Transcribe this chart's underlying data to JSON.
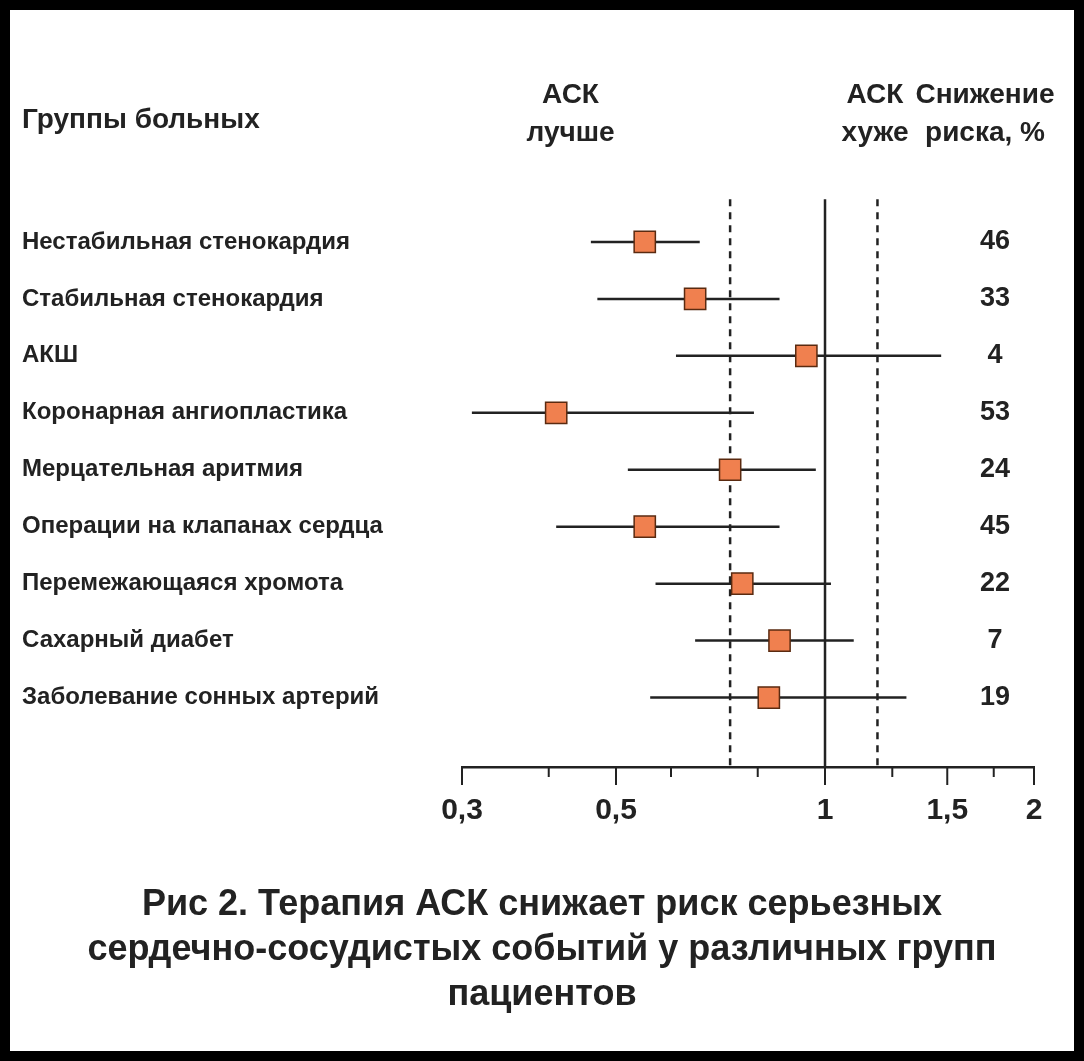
{
  "chart_data": {
    "type": "scatter",
    "orientation": "horizontal",
    "title": "Рис 2. Терапия АСК снижает риск серьезных сердечно-сосудистых событий у различных групп пациентов",
    "annotations": [
      "Группы больных",
      "АСК лучше",
      "АСК хуже",
      "Снижение риска, %",
      "46",
      "33",
      "4",
      "53",
      "24",
      "45",
      "22",
      "7",
      "19"
    ],
    "categories": [
      "Нестабильная стенокардия",
      "Стабильная стенокардия",
      "АКШ",
      "Коронарная ангиопластика",
      "Мерцательная аритмия",
      "Операции на клапанах сердца",
      "Перемежающаяся хромота",
      "Сахарный диабет",
      "Заболевание сонных артерий"
    ],
    "values": [
      0.55,
      0.65,
      0.94,
      0.41,
      0.73,
      0.55,
      0.76,
      0.86,
      0.83
    ],
    "errors": [
      [
        0.46,
        0.66
      ],
      [
        0.47,
        0.86
      ],
      [
        0.61,
        1.47
      ],
      [
        0.31,
        0.79
      ],
      [
        0.52,
        0.97
      ],
      [
        0.41,
        0.86
      ],
      [
        0.57,
        1.02
      ],
      [
        0.65,
        1.1
      ],
      [
        0.56,
        1.31
      ]
    ],
    "color": "#f0804f",
    "marker": "square",
    "log": "x",
    "grid": false,
    "xlim": [
      0.3,
      2
    ],
    "xticks": [
      {
        "value": 0.3,
        "label": "0,3"
      },
      {
        "value": 0.4,
        "label": null
      },
      {
        "value": 0.5,
        "label": "0,5"
      },
      {
        "value": 0.6,
        "label": null
      },
      {
        "value": 0.8,
        "label": null
      },
      1,
      {
        "value": 1.25,
        "label": null
      },
      {
        "value": 1.5,
        "label": "1,5"
      },
      {
        "value": 1.75,
        "label": null
      },
      2
    ],
    "ref_lines": [
      {
        "axis": "x",
        "value": 0.73,
        "line_style": "dashed"
      },
      {
        "axis": "x",
        "value": 1,
        "line_style": "solid"
      },
      {
        "axis": "x",
        "value": 1.19,
        "line_style": "dashed"
      }
    ]
  }
}
